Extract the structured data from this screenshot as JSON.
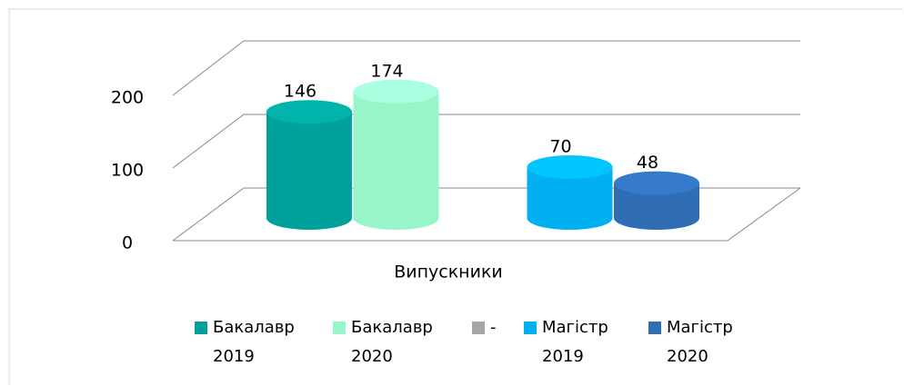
{
  "chart_data": {
    "type": "bar3d-cylinder",
    "categories": [
      "Випускники"
    ],
    "series": [
      {
        "name": "Бакалавр 2019",
        "color": "#00a19a",
        "values": [
          146
        ]
      },
      {
        "name": "Бакалавр 2020",
        "color": "#98f5c8",
        "values": [
          174
        ]
      },
      {
        "name": "-",
        "color": "#a6a6a6",
        "values": [
          null
        ]
      },
      {
        "name": "Магістр 2019",
        "color": "#00b0f0",
        "values": [
          70
        ]
      },
      {
        "name": "Магістр 2020",
        "color": "#2f6db5",
        "values": [
          48
        ]
      }
    ],
    "ylim": [
      0,
      200
    ],
    "yticks": [
      0,
      100,
      200
    ],
    "grid": true,
    "legend": "bottom"
  }
}
